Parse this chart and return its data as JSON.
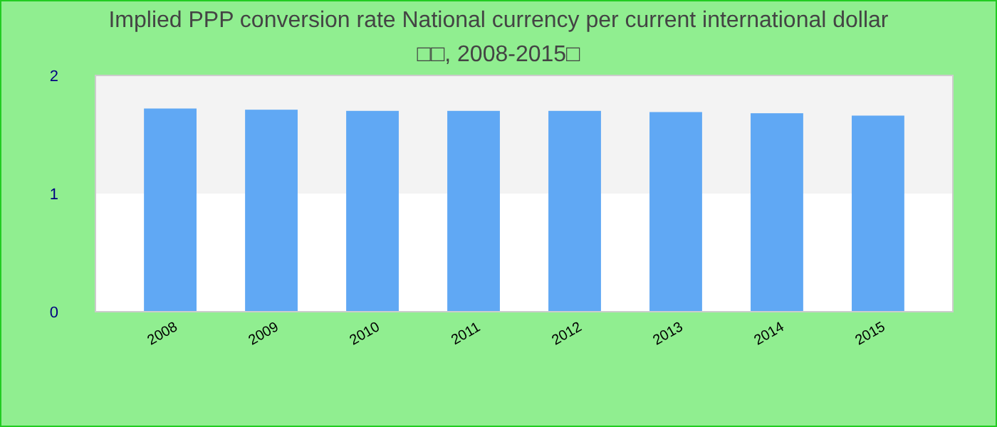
{
  "chart_data": {
    "type": "bar",
    "title": "Implied PPP conversion rate  National currency per current international dollar",
    "subtitle": "□□, 2008-2015□",
    "categories": [
      "2008",
      "2009",
      "2010",
      "2011",
      "2012",
      "2013",
      "2014",
      "2015"
    ],
    "values": [
      1.72,
      1.71,
      1.7,
      1.7,
      1.7,
      1.69,
      1.68,
      1.66
    ],
    "color": "#60a8f4",
    "ylim": [
      0,
      2
    ],
    "yticks": [
      0,
      1,
      2
    ],
    "grid": false,
    "bands": [
      {
        "axis": "y",
        "from": 1,
        "to": 2,
        "color": "#f3f3f3"
      }
    ]
  }
}
